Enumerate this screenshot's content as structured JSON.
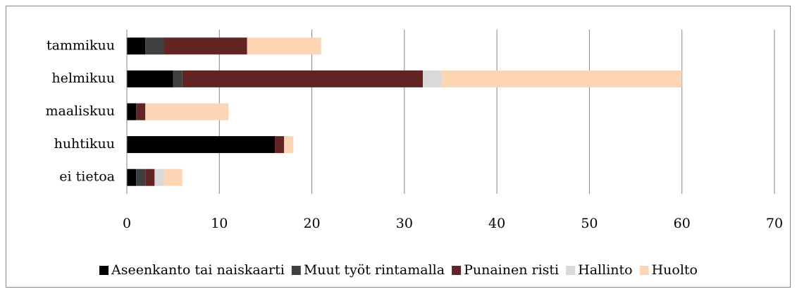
{
  "chart_data": {
    "type": "stacked_bar_horizontal",
    "categories": [
      "tammikuu",
      "helmikuu",
      "maaliskuu",
      "huhtikuu",
      "ei tietoa"
    ],
    "series": [
      {
        "name": "Aseenkanto tai naiskaarti",
        "color": "#000000",
        "values": [
          2,
          5,
          1,
          16,
          1
        ]
      },
      {
        "name": "Muut työt rintamalla",
        "color": "#404040",
        "values": [
          2,
          1,
          0,
          0,
          1
        ]
      },
      {
        "name": "Punainen risti",
        "color": "#632523",
        "values": [
          9,
          26,
          1,
          1,
          1
        ]
      },
      {
        "name": "Hallinto",
        "color": "#d9d9d9",
        "values": [
          0,
          2,
          0,
          0,
          1
        ]
      },
      {
        "name": "Huolto",
        "color": "#fcd5b5",
        "values": [
          8,
          26,
          9,
          1,
          2
        ]
      }
    ],
    "xlim": [
      0,
      70
    ],
    "xticks": [
      0,
      10,
      20,
      30,
      40,
      50,
      60,
      70
    ],
    "grid": true,
    "legend": "bottom"
  }
}
